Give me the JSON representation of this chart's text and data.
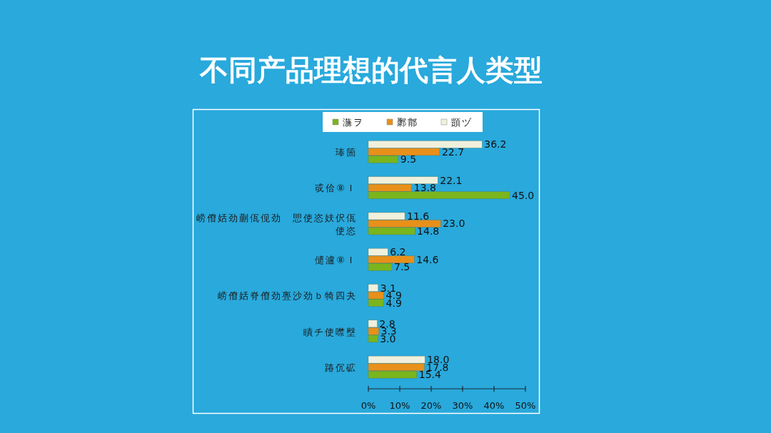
{
  "chart_data": {
    "type": "bar",
    "orientation": "horizontal",
    "title": "不同产品理想的代言人类型",
    "categories": [
      "琫箇",
      "戓佮⑧Ｉ",
      "崂傄姡劲蒯佤伣劲　愳使恣妋伬佤使恣",
      "儙瀘⑧Ｉ",
      "崂傄姡脊傄劲亹沙劲ｂ犄四夬",
      "瞔チ使噤壂",
      "踳伔砿"
    ],
    "series": [
      {
        "name": "湤ヲ",
        "color": "#7ab51d",
        "values": [
          9.5,
          45.0,
          14.8,
          7.5,
          4.9,
          3.0,
          15.4
        ],
        "value_labels": [
          "9.5",
          "45.0",
          "14.8",
          "7.5",
          "4.9",
          "3.0",
          "15.4"
        ]
      },
      {
        "name": "鄹鄁",
        "color": "#e8901a",
        "values": [
          22.7,
          13.8,
          23.0,
          14.6,
          4.9,
          3.3,
          17.8
        ],
        "value_labels": [
          "22.7",
          "13.8",
          "23.0",
          "14.6",
          "4.9",
          "3.3",
          "17.8"
        ]
      },
      {
        "name": "顗ヅ",
        "color": "#f0f0dc",
        "values": [
          36.2,
          22.1,
          11.6,
          6.2,
          3.1,
          2.8,
          18.0
        ],
        "value_labels": [
          "36.2",
          "22.1",
          "11.6",
          "6.2",
          "3.1",
          "2.8",
          "18.0"
        ]
      }
    ],
    "xlim": [
      0,
      50
    ],
    "xticks": [
      {
        "value": 0,
        "label": "0%"
      },
      {
        "value": 10,
        "label": "10%"
      },
      {
        "value": 20,
        "label": "20%"
      },
      {
        "value": 30,
        "label": "30%"
      },
      {
        "value": 40,
        "label": "40%"
      },
      {
        "value": 50,
        "label": "50%"
      }
    ],
    "legend": "top",
    "grid": false
  }
}
